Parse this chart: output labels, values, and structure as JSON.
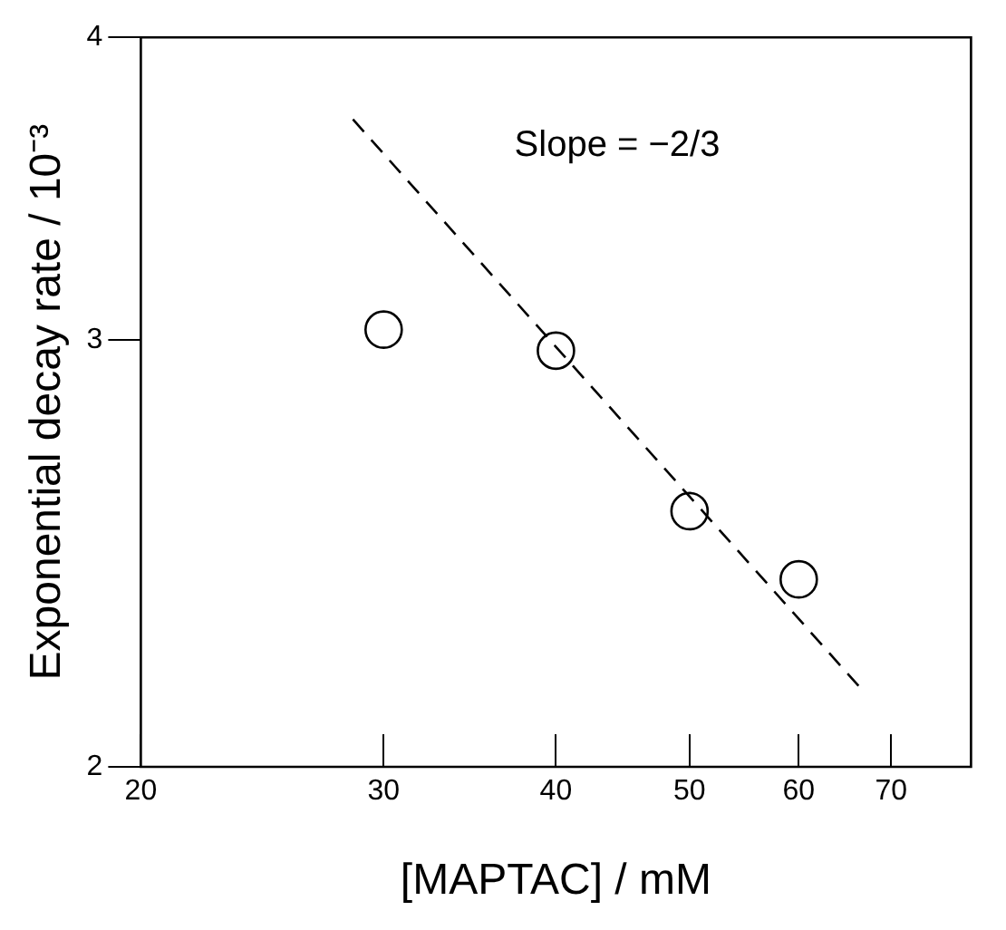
{
  "chart_data": {
    "type": "scatter",
    "xlabel": "[MAPTAC] / mM",
    "ylabel": "Exponential decay rate / 10⁻³",
    "log": "xy",
    "grid": false,
    "legend": false,
    "marker": "circle",
    "xlim": [
      20,
      80
    ],
    "xticks": [
      20,
      30,
      40,
      50,
      60,
      70
    ],
    "ylim": [
      2,
      4
    ],
    "yticks": [
      2,
      3,
      4
    ],
    "annotations": [
      "Slope = −2/3"
    ],
    "series": [
      {
        "type": "scatter",
        "color": "#000000",
        "x": [
          30,
          40,
          50,
          60
        ],
        "values": [
          3.03,
          2.97,
          2.55,
          2.39
        ]
      },
      {
        "type": "line",
        "color": "#000000",
        "line_style": "dashed",
        "marker": "none",
        "x": [
          28.5,
          66.3
        ],
        "values": [
          3.7,
          2.16
        ]
      }
    ]
  }
}
